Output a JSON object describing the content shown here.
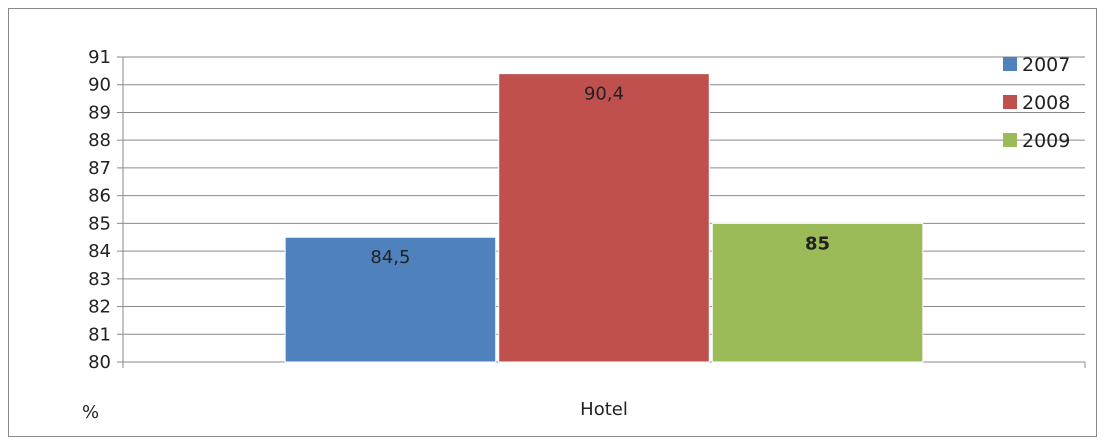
{
  "chart_data": {
    "type": "bar",
    "categories": [
      "Hotel"
    ],
    "series": [
      {
        "name": "2007",
        "values": [
          84.5
        ],
        "label": "84,5",
        "color": "#4f81bd",
        "label_bold": false
      },
      {
        "name": "2008",
        "values": [
          90.4
        ],
        "label": "90,4",
        "color": "#c0504d",
        "label_bold": false
      },
      {
        "name": "2009",
        "values": [
          85
        ],
        "label": "85",
        "color": "#9bbb59",
        "label_bold": true
      }
    ],
    "ylim": [
      80,
      91
    ],
    "yticks": [
      80,
      81,
      82,
      83,
      84,
      85,
      86,
      87,
      88,
      89,
      90,
      91
    ],
    "ylabel": "%",
    "xlabel": "",
    "title": "",
    "grid": true,
    "legend_position": "right"
  }
}
